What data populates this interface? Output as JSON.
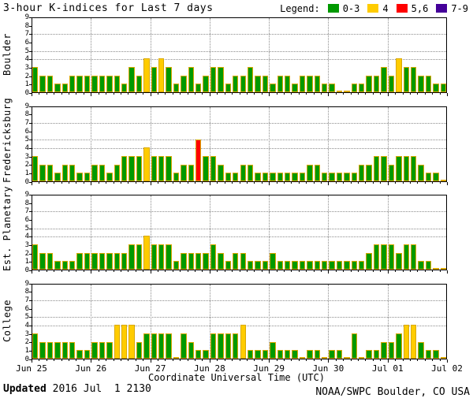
{
  "title": "3-hour K-indices for Last 7 days",
  "legend": {
    "label": "Legend:",
    "items": [
      {
        "label": "0-3",
        "color": "#009900"
      },
      {
        "label": "4",
        "color": "#ffcc00"
      },
      {
        "label": "5,6",
        "color": "#ff0000"
      },
      {
        "label": "7-9",
        "color": "#440099"
      }
    ]
  },
  "chart_data": {
    "type": "bar",
    "description": "3-hour K-index values per station, 8 bins per day over 7 days (Jun 25 - Jul 01 2016, plotted to Jul 02)",
    "ylim": [
      0,
      9
    ],
    "y_ticks": [
      0,
      1,
      2,
      3,
      4,
      5,
      6,
      7,
      8,
      9
    ],
    "gridlines_y": [
      4,
      5,
      7
    ],
    "grid": "dotted",
    "bins_per_day": 8,
    "x_tick_labels": [
      "Jun 25",
      "Jun 26",
      "Jun 27",
      "Jun 28",
      "Jun 29",
      "Jun 30",
      "Jul 01",
      "Jul 02"
    ],
    "xlabel": "Coordinate Universal Time (UTC)",
    "color_rule": {
      "green": "K 0-3",
      "yellow": "K 4",
      "red": "K 5-6",
      "purple": "K 7-9"
    },
    "panels": [
      {
        "name": "Boulder",
        "values": [
          3,
          2,
          2,
          1,
          1,
          2,
          2,
          2,
          2,
          2,
          2,
          2,
          1,
          3,
          2,
          4,
          3,
          4,
          3,
          1,
          2,
          3,
          1,
          2,
          3,
          3,
          1,
          2,
          2,
          3,
          2,
          2,
          1,
          2,
          2,
          1,
          2,
          2,
          2,
          1,
          1,
          0,
          0,
          1,
          1,
          2,
          2,
          3,
          2,
          4,
          3,
          3,
          2,
          2,
          1,
          1
        ]
      },
      {
        "name": "Fredericksburg",
        "values": [
          3,
          2,
          2,
          1,
          2,
          2,
          1,
          1,
          2,
          2,
          1,
          2,
          3,
          3,
          3,
          4,
          3,
          3,
          3,
          1,
          2,
          2,
          5,
          3,
          3,
          2,
          1,
          1,
          2,
          2,
          1,
          1,
          1,
          1,
          1,
          1,
          1,
          2,
          2,
          1,
          1,
          1,
          1,
          1,
          2,
          2,
          3,
          3,
          2,
          3,
          3,
          3,
          2,
          1,
          1,
          0
        ]
      },
      {
        "name": "Est. Planetary",
        "values": [
          3,
          2,
          2,
          1,
          1,
          1,
          2,
          2,
          2,
          2,
          2,
          2,
          2,
          3,
          3,
          4,
          3,
          3,
          3,
          1,
          2,
          2,
          2,
          2,
          3,
          2,
          1,
          2,
          2,
          1,
          1,
          1,
          2,
          1,
          1,
          1,
          1,
          1,
          1,
          1,
          1,
          1,
          1,
          1,
          1,
          2,
          3,
          3,
          3,
          2,
          3,
          3,
          1,
          1,
          0,
          0
        ]
      },
      {
        "name": "College",
        "values": [
          3,
          2,
          2,
          2,
          2,
          2,
          1,
          1,
          2,
          2,
          2,
          4,
          4,
          4,
          2,
          3,
          3,
          3,
          3,
          0,
          3,
          2,
          1,
          1,
          3,
          3,
          3,
          3,
          4,
          1,
          1,
          1,
          2,
          1,
          1,
          1,
          0,
          1,
          1,
          0,
          1,
          1,
          0,
          3,
          0,
          1,
          1,
          2,
          2,
          3,
          4,
          4,
          2,
          1,
          1,
          0
        ]
      }
    ]
  },
  "footer": {
    "updated_label": "Updated",
    "updated_value": " 2016 Jul  1 2130",
    "credit": "NOAA/SWPC Boulder, CO USA"
  },
  "colors": {
    "green": "#009900",
    "yellow": "#ffcc00",
    "red": "#ff0000",
    "purple": "#440099",
    "bar_border": "#d9a800",
    "grid": "#8c8c8c",
    "axis": "#000000",
    "background": "#ffffff"
  }
}
